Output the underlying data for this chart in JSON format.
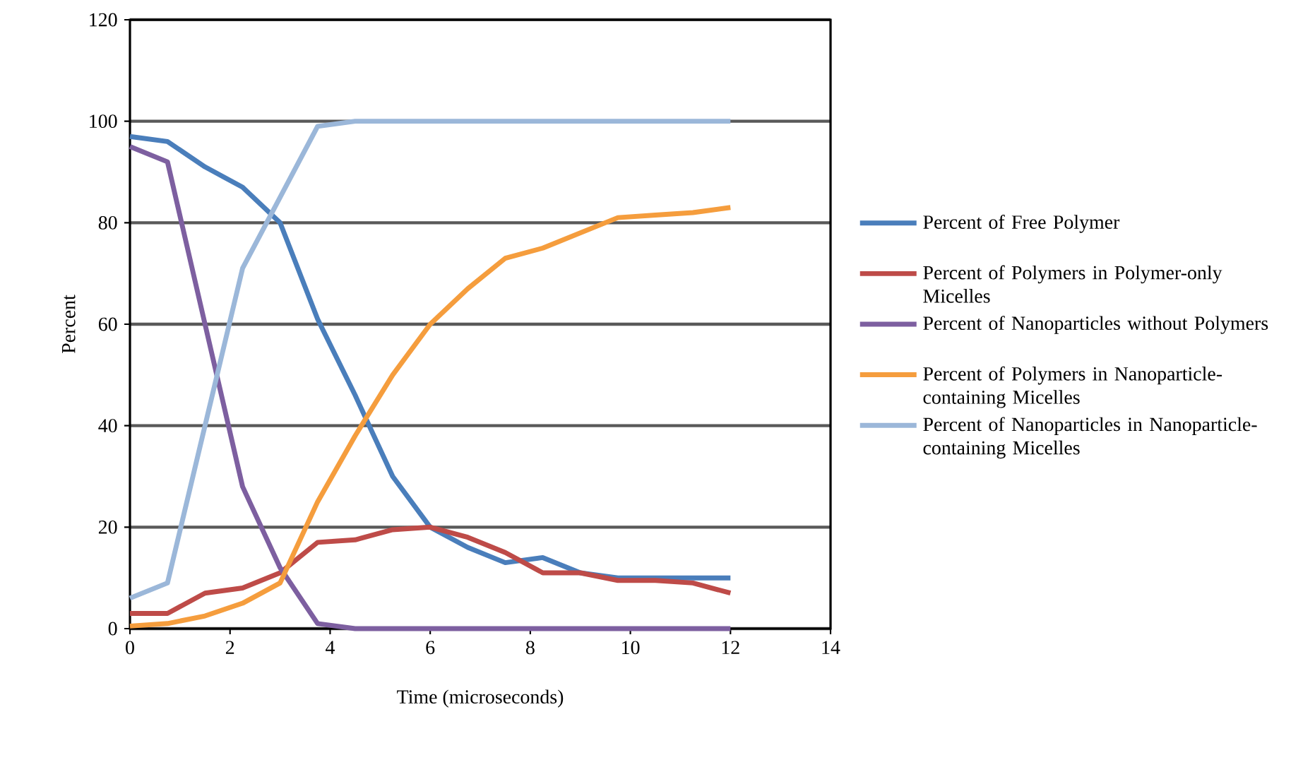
{
  "chart_data": {
    "type": "line",
    "xlabel": "Time (microseconds)",
    "ylabel": "Percent",
    "x": [
      0,
      0.75,
      1.5,
      2.25,
      3,
      3.75,
      4.5,
      5.25,
      6,
      6.75,
      7.5,
      8.25,
      9,
      9.75,
      10.5,
      11.25,
      12
    ],
    "series": [
      {
        "name": "Percent of Free Polymer",
        "color": "#4a7ebb",
        "values": [
          97,
          96,
          91,
          87,
          80,
          61,
          46,
          30,
          20,
          16,
          13,
          14,
          11,
          10,
          10,
          10,
          10
        ]
      },
      {
        "name": "Percent of Polymers in Polymer-only Micelles",
        "color": "#be4b48",
        "values": [
          3,
          3,
          7,
          8,
          11,
          17,
          17.5,
          19.5,
          20,
          18,
          15,
          11,
          11,
          9.5,
          9.5,
          9,
          7
        ]
      },
      {
        "name": "Percent of Nanoparticles without Polymers",
        "color": "#7d5fa0",
        "values": [
          95,
          92,
          60,
          28,
          12,
          1,
          0,
          0,
          0,
          0,
          0,
          0,
          0,
          0,
          0,
          0,
          0
        ]
      },
      {
        "name": "Percent of Polymers in Nanoparticle-containing Micelles",
        "color": "#f59d3d",
        "values": [
          0.5,
          1,
          2.5,
          5,
          9,
          25,
          38,
          50,
          60,
          67,
          73,
          75,
          78,
          81,
          81.5,
          82,
          83
        ]
      },
      {
        "name": "Percent of Nanoparticles in Nanoparticle-containing Micelles",
        "color": "#9bb7d9",
        "values": [
          6,
          9,
          40,
          71,
          85,
          99,
          100,
          100,
          100,
          100,
          100,
          100,
          100,
          100,
          100,
          100,
          100
        ]
      }
    ],
    "xlim": [
      0,
      14
    ],
    "ylim": [
      0,
      120
    ],
    "xticks": [
      0,
      2,
      4,
      6,
      8,
      10,
      12,
      14
    ],
    "yticks": [
      0,
      20,
      40,
      60,
      80,
      100,
      120
    ],
    "grid": "y",
    "legend": "right",
    "marker": "none",
    "line_style": "solid"
  }
}
